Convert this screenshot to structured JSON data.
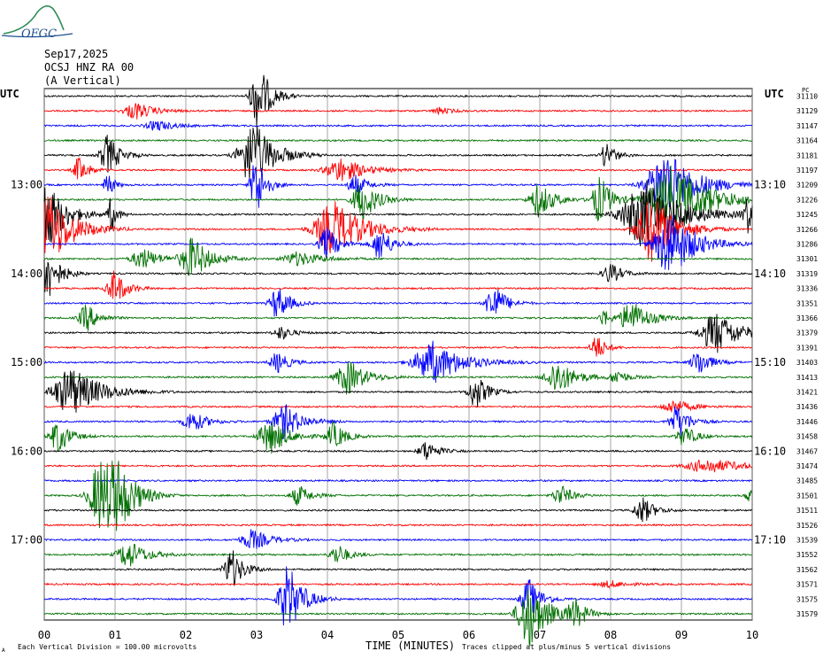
{
  "logo": {
    "text": "OFGC"
  },
  "header": {
    "date": "Sep17,2025",
    "station": "OCSJ HNZ RA 00",
    "component": "(A Vertical)"
  },
  "labels": {
    "utc_left": "UTC",
    "utc_right": "UTC",
    "right_top": "PC",
    "xlabel": "TIME (MINUTES)",
    "footer_left": "Each Vertical Division =  100.00 microvolts",
    "footer_right": "Traces clipped at plus/minus 5 vertical divisions",
    "corner_mark": "A"
  },
  "colors": {
    "black": "#000000",
    "red": "#ff0000",
    "blue": "#0000ff",
    "green": "#007000",
    "grid": "#808080"
  },
  "chart_data": {
    "type": "line",
    "x_ticks": [
      "00",
      "01",
      "02",
      "03",
      "04",
      "05",
      "06",
      "07",
      "08",
      "09",
      "10"
    ],
    "xlim": [
      0,
      10
    ],
    "left_time_labels": [
      "13:00",
      "14:00",
      "15:00",
      "16:00",
      "17:00"
    ],
    "right_time_labels": [
      "13:10",
      "14:10",
      "15:10",
      "16:10",
      "17:10"
    ],
    "trace_colors": [
      "black",
      "red",
      "blue",
      "green"
    ],
    "trace_ids": [
      "31110",
      "31129",
      "31147",
      "31164",
      "31181",
      "31197",
      "31209",
      "31226",
      "31245",
      "31266",
      "31286",
      "31301",
      "31319",
      "31336",
      "31351",
      "31366",
      "31379",
      "31391",
      "31403",
      "31413",
      "31421",
      "31436",
      "31446",
      "31458",
      "31467",
      "31474",
      "31485",
      "31501",
      "31511",
      "31526",
      "31539",
      "31552",
      "31562",
      "31571",
      "31575",
      "31579"
    ],
    "events": [
      [
        [
          3.03,
          1.0,
          0.2
        ]
      ],
      [
        [
          1.3,
          0.25,
          0.3
        ],
        [
          5.6,
          0.1,
          0.2
        ]
      ],
      [
        [
          1.6,
          0.15,
          0.3
        ]
      ],
      [],
      [
        [
          0.9,
          0.6,
          0.2
        ],
        [
          2.95,
          1.0,
          0.35
        ],
        [
          7.95,
          0.4,
          0.15
        ]
      ],
      [
        [
          0.5,
          0.4,
          0.15
        ],
        [
          4.2,
          0.35,
          0.4
        ]
      ],
      [
        [
          0.9,
          0.4,
          0.1
        ],
        [
          3.0,
          1.0,
          0.15
        ],
        [
          4.4,
          0.3,
          0.2
        ],
        [
          8.8,
          1.0,
          0.5
        ]
      ],
      [
        [
          4.5,
          0.6,
          0.25
        ],
        [
          7.0,
          0.5,
          0.25
        ],
        [
          7.85,
          0.7,
          0.2
        ],
        [
          8.9,
          1.0,
          0.6
        ]
      ],
      [
        [
          0.05,
          1.0,
          0.3
        ],
        [
          0.95,
          0.5,
          0.1
        ],
        [
          8.5,
          1.0,
          0.6
        ],
        [
          9.95,
          0.5,
          0.15
        ]
      ],
      [
        [
          0.1,
          1.0,
          0.4
        ],
        [
          4.1,
          0.8,
          0.5
        ],
        [
          8.6,
          1.0,
          0.4
        ]
      ],
      [
        [
          4.0,
          0.5,
          0.2
        ],
        [
          4.75,
          0.5,
          0.2
        ],
        [
          8.85,
          1.0,
          0.4
        ]
      ],
      [
        [
          1.4,
          0.3,
          0.3
        ],
        [
          2.1,
          0.6,
          0.3
        ],
        [
          3.6,
          0.2,
          0.4
        ]
      ],
      [
        [
          0.02,
          1.0,
          0.2
        ],
        [
          8.0,
          0.3,
          0.2
        ]
      ],
      [
        [
          1.0,
          0.5,
          0.2
        ]
      ],
      [
        [
          3.3,
          0.5,
          0.2
        ],
        [
          6.35,
          0.6,
          0.2
        ]
      ],
      [
        [
          0.6,
          0.4,
          0.2
        ],
        [
          8.3,
          0.5,
          0.3
        ],
        [
          7.9,
          0.3,
          0.1
        ]
      ],
      [
        [
          9.5,
          0.6,
          0.4
        ],
        [
          3.35,
          0.2,
          0.2
        ]
      ],
      [
        [
          7.8,
          0.4,
          0.15
        ]
      ],
      [
        [
          3.3,
          0.3,
          0.2
        ],
        [
          5.5,
          0.6,
          0.5
        ],
        [
          9.25,
          0.4,
          0.2
        ]
      ],
      [
        [
          4.3,
          0.5,
          0.3
        ],
        [
          7.25,
          0.5,
          0.3
        ],
        [
          8.1,
          0.2,
          0.2
        ]
      ],
      [
        [
          0.4,
          0.7,
          0.5
        ],
        [
          6.1,
          0.5,
          0.2
        ]
      ],
      [
        [
          8.9,
          0.2,
          0.3
        ]
      ],
      [
        [
          2.1,
          0.3,
          0.25
        ],
        [
          3.4,
          0.5,
          0.3
        ],
        [
          8.95,
          0.5,
          0.2
        ]
      ],
      [
        [
          0.2,
          0.5,
          0.2
        ],
        [
          3.2,
          0.5,
          0.3
        ],
        [
          4.1,
          0.4,
          0.2
        ],
        [
          9.05,
          0.3,
          0.2
        ]
      ],
      [
        [
          5.4,
          0.3,
          0.2
        ]
      ],
      [
        [
          9.4,
          0.2,
          0.6
        ]
      ],
      [],
      [
        [
          0.8,
          1.0,
          0.3
        ],
        [
          1.05,
          0.8,
          0.3
        ],
        [
          3.6,
          0.3,
          0.2
        ],
        [
          7.3,
          0.3,
          0.2
        ],
        [
          9.95,
          0.2,
          0.1
        ]
      ],
      [
        [
          8.45,
          0.4,
          0.2
        ]
      ],
      [],
      [
        [
          2.95,
          0.3,
          0.3
        ]
      ],
      [
        [
          1.2,
          0.4,
          0.3
        ],
        [
          4.15,
          0.3,
          0.2
        ]
      ],
      [
        [
          2.65,
          0.6,
          0.2
        ]
      ],
      [
        [
          8.0,
          0.1,
          0.3
        ]
      ],
      [
        [
          3.45,
          1.0,
          0.25
        ],
        [
          6.85,
          0.6,
          0.2
        ]
      ],
      [
        [
          6.85,
          1.0,
          0.3
        ],
        [
          7.5,
          0.4,
          0.2
        ]
      ]
    ]
  }
}
